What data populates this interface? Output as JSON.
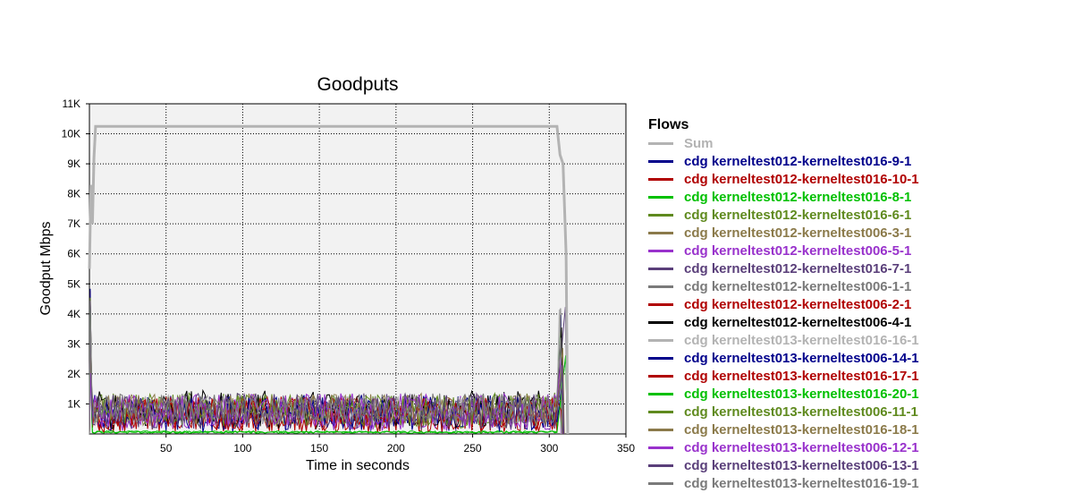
{
  "chart_data": {
    "type": "line",
    "title": "Goodputs",
    "xlabel": "Time in seconds",
    "ylabel": "Goodput Mbps",
    "xlim": [
      0,
      350
    ],
    "ylim": [
      0,
      11000
    ],
    "xticks": [
      "50",
      "100",
      "150",
      "200",
      "250",
      "300",
      "350"
    ],
    "yticks": [
      "1K",
      "2K",
      "3K",
      "4K",
      "5K",
      "6K",
      "7K",
      "8K",
      "9K",
      "10K",
      "11K"
    ],
    "grid": true,
    "legend_title": "Flows",
    "legend_position": "right",
    "series": [
      {
        "name": "Sum",
        "color": "#b3b3b3",
        "points": [
          [
            0,
            5500
          ],
          [
            1,
            8300
          ],
          [
            2,
            7000
          ],
          [
            3,
            9200
          ],
          [
            4,
            10250
          ],
          [
            100,
            10250
          ],
          [
            200,
            10250
          ],
          [
            305,
            10250
          ],
          [
            307,
            9300
          ],
          [
            309,
            9000
          ],
          [
            311,
            6000
          ],
          [
            312,
            0
          ]
        ]
      },
      {
        "name": "cdg kerneltest012-kerneltest016-9-1",
        "color": "#00008b",
        "mean": 700,
        "amp": 600
      },
      {
        "name": "cdg kerneltest012-kerneltest016-10-1",
        "color": "#b00000",
        "mean": 650,
        "amp": 600
      },
      {
        "name": "cdg kerneltest012-kerneltest016-8-1",
        "color": "#00c000",
        "mean": 60,
        "amp": 40
      },
      {
        "name": "cdg kerneltest012-kerneltest016-6-1",
        "color": "#5f8a1e",
        "mean": 800,
        "amp": 600
      },
      {
        "name": "cdg kerneltest012-kerneltest006-3-1",
        "color": "#8b7a4a",
        "mean": 800,
        "amp": 550
      },
      {
        "name": "cdg kerneltest012-kerneltest006-5-1",
        "color": "#9932cc",
        "mean": 700,
        "amp": 600
      },
      {
        "name": "cdg kerneltest012-kerneltest016-7-1",
        "color": "#5a3f7a",
        "mean": 750,
        "amp": 600
      },
      {
        "name": "cdg kerneltest012-kerneltest006-1-1",
        "color": "#7a7a7a",
        "mean": 850,
        "amp": 500
      },
      {
        "name": "cdg kerneltest012-kerneltest006-2-1",
        "color": "#b00000",
        "mean": 650,
        "amp": 600
      },
      {
        "name": "cdg kerneltest012-kerneltest006-4-1",
        "color": "#000000",
        "mean": 800,
        "amp": 650
      },
      {
        "name": "cdg kerneltest013-kerneltest016-16-1",
        "color": "#b3b3b3",
        "mean": 800,
        "amp": 500
      },
      {
        "name": "cdg kerneltest013-kerneltest006-14-1",
        "color": "#00008b",
        "mean": 650,
        "amp": 600
      },
      {
        "name": "cdg kerneltest013-kerneltest016-17-1",
        "color": "#b00000",
        "mean": 650,
        "amp": 600
      },
      {
        "name": "cdg kerneltest013-kerneltest016-20-1",
        "color": "#00c000",
        "mean": 60,
        "amp": 40
      },
      {
        "name": "cdg kerneltest013-kerneltest006-11-1",
        "color": "#5f8a1e",
        "mean": 800,
        "amp": 550
      },
      {
        "name": "cdg kerneltest013-kerneltest016-18-1",
        "color": "#8b7a4a",
        "mean": 800,
        "amp": 550
      },
      {
        "name": "cdg kerneltest013-kerneltest006-12-1",
        "color": "#9932cc",
        "mean": 750,
        "amp": 600
      },
      {
        "name": "cdg kerneltest013-kerneltest006-13-1",
        "color": "#5a3f7a",
        "mean": 750,
        "amp": 600
      },
      {
        "name": "cdg kerneltest013-kerneltest016-19-1",
        "color": "#7a7a7a",
        "mean": 850,
        "amp": 500
      }
    ]
  }
}
